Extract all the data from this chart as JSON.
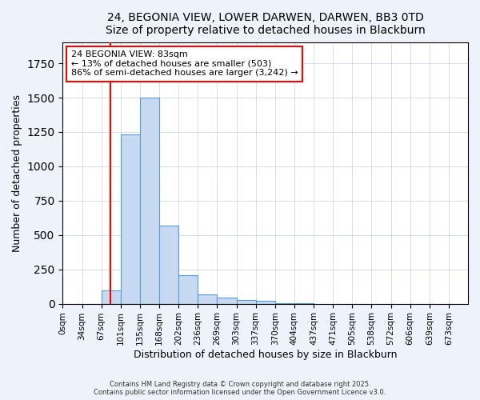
{
  "title": "24, BEGONIA VIEW, LOWER DARWEN, DARWEN, BB3 0TD",
  "subtitle": "Size of property relative to detached houses in Blackburn",
  "xlabel": "Distribution of detached houses by size in Blackburn",
  "ylabel": "Number of detached properties",
  "bin_labels": [
    "0sqm",
    "34sqm",
    "67sqm",
    "101sqm",
    "135sqm",
    "168sqm",
    "202sqm",
    "236sqm",
    "269sqm",
    "303sqm",
    "337sqm",
    "370sqm",
    "404sqm",
    "437sqm",
    "471sqm",
    "505sqm",
    "538sqm",
    "572sqm",
    "606sqm",
    "639sqm",
    "673sqm"
  ],
  "bar_values": [
    0,
    0,
    95,
    1235,
    1500,
    570,
    210,
    65,
    45,
    25,
    20,
    5,
    2,
    0,
    0,
    0,
    0,
    0,
    0,
    0,
    0
  ],
  "bar_color": "#c6d9f0",
  "bar_edge_color": "#5b9bd5",
  "red_line_sqm": 83,
  "bin_edges_sqm": [
    0,
    34,
    67,
    101,
    135,
    168,
    202,
    236,
    269,
    303,
    337,
    370,
    404,
    437,
    471,
    505,
    538,
    572,
    606,
    639,
    673
  ],
  "ylim": [
    0,
    1900
  ],
  "annotation_title": "24 BEGONIA VIEW: 83sqm",
  "annotation_line1": "← 13% of detached houses are smaller (503)",
  "annotation_line2": "86% of semi-detached houses are larger (3,242) →",
  "footer_line1": "Contains HM Land Registry data © Crown copyright and database right 2025.",
  "footer_line2": "Contains public sector information licensed under the Open Government Licence v3.0.",
  "background_color": "#eef2fb",
  "plot_bg_color": "#ffffff",
  "grid_color": "#c8d0e0"
}
